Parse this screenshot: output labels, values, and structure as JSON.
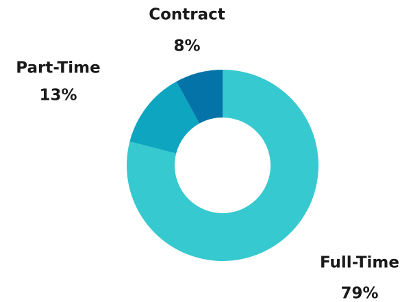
{
  "chart_data": {
    "type": "donut",
    "categories": [
      "Full-Time",
      "Part-Time",
      "Contract"
    ],
    "values": [
      79,
      13,
      8
    ],
    "value_labels": [
      "79%",
      "13%",
      "8%"
    ],
    "colors": [
      "#36c9cf",
      "#0ea5c0",
      "#0474a8"
    ]
  }
}
